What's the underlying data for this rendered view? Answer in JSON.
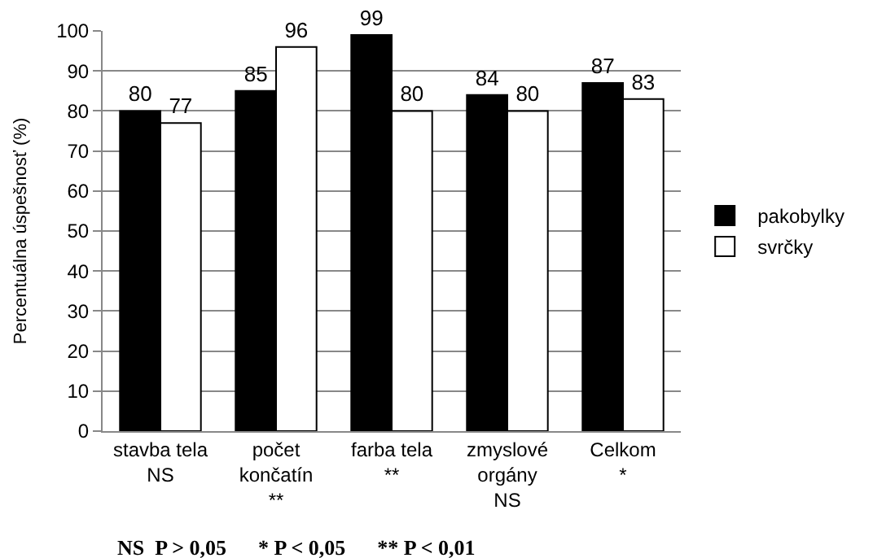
{
  "chart_data": {
    "type": "bar",
    "ylabel": "Percentuálna úspešnosť (%)",
    "categories": [
      "stavba tela\nNS",
      "počet\nkončatín\n**",
      "farba tela\n**",
      "zmyslové\norgány\nNS",
      "Celkom\n*"
    ],
    "series": [
      {
        "name": "pakobylky",
        "color": "#000000",
        "values": [
          80,
          85,
          99,
          84,
          87
        ]
      },
      {
        "name": "svrčky",
        "color": "#ffffff",
        "values": [
          77,
          96,
          80,
          80,
          83
        ]
      }
    ],
    "ylim": [
      0,
      100
    ],
    "yticks": [
      0,
      10,
      20,
      30,
      40,
      50,
      60,
      70,
      80,
      90,
      100
    ],
    "grid": "y",
    "legend": "right",
    "data_labels": true,
    "annotations": [
      "NS  P > 0,05      * P < 0,05      ** P < 0,01"
    ]
  }
}
